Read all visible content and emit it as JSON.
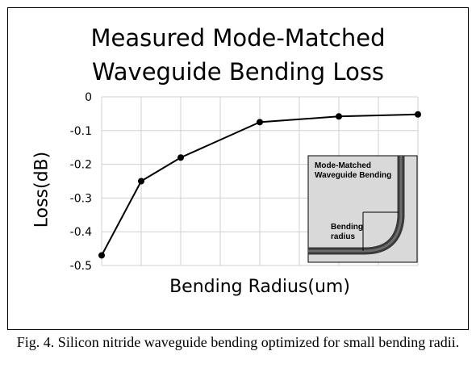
{
  "chart_data": {
    "type": "line",
    "title": [
      "Measured Mode-Matched",
      "Waveguide Bending Loss"
    ],
    "xlabel": "Bending Radius(um)",
    "ylabel": "Loss(dB)",
    "ylim": [
      -0.5,
      0
    ],
    "yticks": [
      "0",
      "-0.1",
      "-0.2",
      "-0.3",
      "-0.4",
      "-0.5"
    ],
    "ytick_values": [
      0,
      -0.1,
      -0.2,
      -0.3,
      -0.4,
      -0.5
    ],
    "x_gridlines": 8,
    "grid": true,
    "series": [
      {
        "color": "#000000",
        "x": [
          0,
          1,
          2,
          4,
          6,
          8
        ],
        "y": [
          -0.47,
          -0.25,
          -0.18,
          -0.075,
          -0.058,
          -0.052
        ]
      }
    ],
    "inset": {
      "title_line1": "Mode-Matched",
      "title_line2": "Waveguide Bending",
      "label_line1": "Bending",
      "label_line2": "radius"
    }
  },
  "caption": "Fig. 4. Silicon nitride waveguide bending optimized for small bending radii."
}
